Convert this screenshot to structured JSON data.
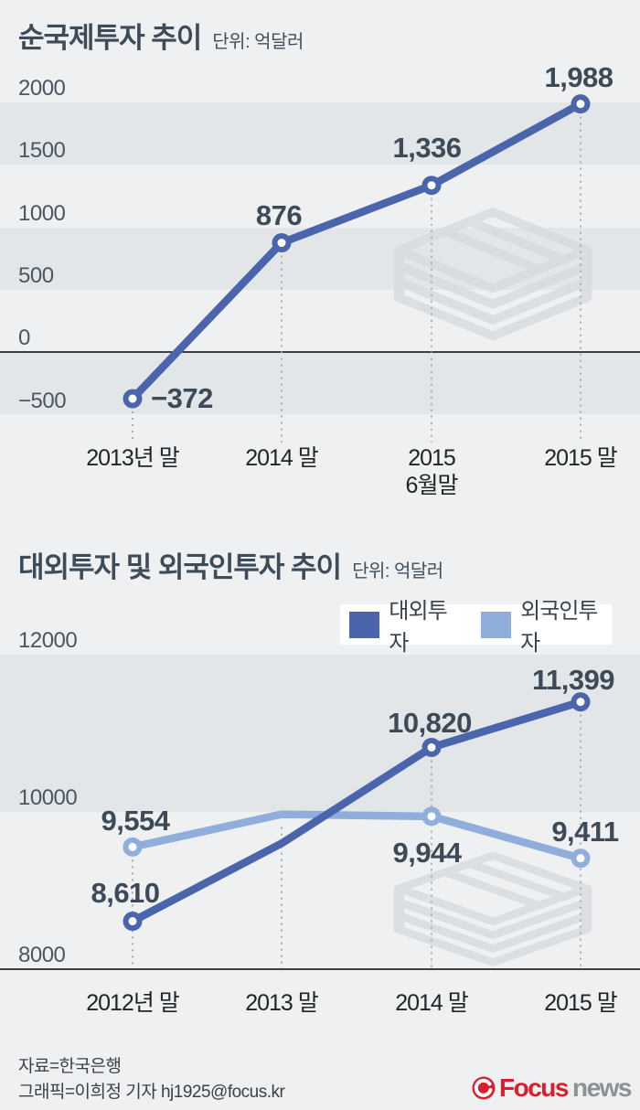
{
  "colors": {
    "background": "#eef0f1",
    "band": "#e3e6e8",
    "series_dark_blue": "#4b65ad",
    "series_light_blue": "#90aedb",
    "data_label": "#3d4a57",
    "axis_line": "#3c4043",
    "guide_dotted": "#a7adb2",
    "logo_red": "#d6202b",
    "logo_gray": "#8d9194"
  },
  "chart_data": [
    {
      "type": "line",
      "title": "순국제투자 추이",
      "unit_label": "단위: 억달러",
      "categories": [
        "2013년 말",
        "2014 말",
        "2015\n6월말",
        "2015 말"
      ],
      "values": [
        -372,
        876,
        1336,
        1988
      ],
      "value_labels": [
        "−372",
        "876",
        "1,336",
        "1,988"
      ],
      "color": "#4b65ad",
      "y_ticks": [
        2000,
        1500,
        1000,
        500,
        0,
        -500
      ],
      "y_tick_labels": [
        "2000",
        "1500",
        "1000",
        "500",
        "0",
        "−500"
      ],
      "ylim": [
        -500,
        2000
      ],
      "grid": "alternating horizontal bands, solid zero axis, dotted vertical guides"
    },
    {
      "type": "line",
      "title": "대외투자 및 외국인투자 추이",
      "unit_label": "단위: 억달러",
      "categories": [
        "2012년 말",
        "2013 말",
        "2014 말",
        "2015 말"
      ],
      "series": [
        {
          "name": "대외투자",
          "color": "#4b65ad",
          "values": [
            8610,
            9600,
            10820,
            11399
          ],
          "value_labels": [
            "8,610",
            "",
            "10,820",
            "11,399"
          ]
        },
        {
          "name": "외국인투자",
          "color": "#90aedb",
          "values": [
            9554,
            9970,
            9944,
            9411
          ],
          "value_labels": [
            "9,554",
            "",
            "9,944",
            "9,411"
          ]
        }
      ],
      "y_ticks": [
        12000,
        10000,
        8000
      ],
      "y_tick_labels": [
        "12000",
        "10000",
        "8000"
      ],
      "ylim": [
        8000,
        12000
      ],
      "legend_position": "top-right, white box",
      "grid": "gray band between 10000 and 12000, solid bottom axis, dotted vertical guides"
    }
  ],
  "footer": {
    "source": "자료=한국은행",
    "credit": "그래픽=이희정 기자 hj1925@focus.kr"
  },
  "logo": {
    "brand_red": "Focus",
    "brand_gray": "news"
  }
}
